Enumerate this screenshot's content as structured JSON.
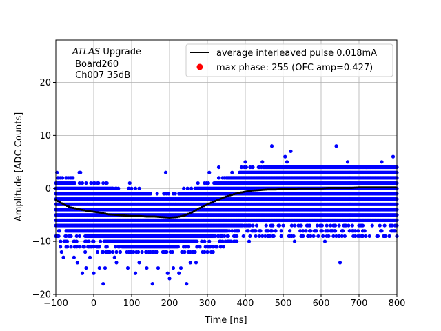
{
  "chart_data": {
    "type": "scatter",
    "xlabel": "Time [ns]",
    "ylabel": "Amplitude [ADC Counts]",
    "xlim": [
      -100,
      800
    ],
    "ylim": [
      -20,
      28
    ],
    "x_ticks": [
      -100,
      0,
      100,
      200,
      300,
      400,
      500,
      600,
      700,
      800
    ],
    "x_tick_labels": [
      "−100",
      "0",
      "100",
      "200",
      "300",
      "400",
      "500",
      "600",
      "700",
      "800"
    ],
    "y_ticks": [
      -20,
      -10,
      0,
      10,
      20
    ],
    "y_tick_labels": [
      "−20",
      "−10",
      "0",
      "10",
      "20"
    ],
    "grid": true,
    "annotation": {
      "italic": "ATLAS",
      "rest": " Upgrade",
      "line2": " Board260",
      "line3": " Ch007 35dB"
    },
    "legend": {
      "placement": "top-right",
      "entries": [
        {
          "label": "average interleaved pulse 0.018mA",
          "style": "line",
          "color": "#000000"
        },
        {
          "label": "max phase: 255 (OFC amp=0.427)",
          "style": "marker",
          "color": "#ff0000"
        }
      ]
    },
    "series": [
      {
        "name": "samples",
        "style": "scatter",
        "color": "#0000ff",
        "band": {
          "x_range": [
            -100,
            800
          ],
          "low_at": [
            [
              -100,
              -7
            ],
            [
              0,
              -9
            ],
            [
              100,
              -11
            ],
            [
              200,
              -11
            ],
            [
              300,
              -9
            ],
            [
              400,
              -6
            ],
            [
              500,
              -6
            ],
            [
              800,
              -6
            ]
          ],
          "high_at": [
            [
              -100,
              1
            ],
            [
              0,
              0
            ],
            [
              100,
              -1
            ],
            [
              200,
              -2
            ],
            [
              300,
              0
            ],
            [
              400,
              3
            ],
            [
              500,
              4
            ],
            [
              800,
              4
            ]
          ],
          "dense_step_ns": 2.5,
          "y_values": [
            -12,
            -11,
            -10,
            -9,
            -8,
            -7,
            -6,
            -5,
            -4,
            -3,
            -2,
            -1,
            0,
            1,
            2,
            3,
            4
          ]
        },
        "outliers": [
          [
            -97,
            3
          ],
          [
            -95,
            2
          ],
          [
            -92,
            1
          ],
          [
            -88,
            -11
          ],
          [
            -85,
            -12
          ],
          [
            -80,
            -13
          ],
          [
            -78,
            -10
          ],
          [
            -60,
            2
          ],
          [
            -52,
            -13
          ],
          [
            -43,
            -14
          ],
          [
            -38,
            3
          ],
          [
            -35,
            3
          ],
          [
            -30,
            -16
          ],
          [
            -20,
            -15
          ],
          [
            -10,
            -13
          ],
          [
            0,
            -16
          ],
          [
            15,
            -15
          ],
          [
            25,
            -18
          ],
          [
            30,
            -15
          ],
          [
            50,
            0
          ],
          [
            55,
            -13
          ],
          [
            60,
            -14
          ],
          [
            90,
            -15
          ],
          [
            95,
            1
          ],
          [
            110,
            -16
          ],
          [
            120,
            -14
          ],
          [
            140,
            -15
          ],
          [
            155,
            -18
          ],
          [
            170,
            -15
          ],
          [
            190,
            3
          ],
          [
            195,
            -16
          ],
          [
            200,
            -17
          ],
          [
            210,
            -15
          ],
          [
            225,
            -16
          ],
          [
            230,
            -15
          ],
          [
            245,
            -18
          ],
          [
            255,
            -14
          ],
          [
            270,
            -14
          ],
          [
            275,
            1
          ],
          [
            295,
            -11
          ],
          [
            305,
            3
          ],
          [
            320,
            -9
          ],
          [
            330,
            4
          ],
          [
            340,
            -9
          ],
          [
            355,
            -10
          ],
          [
            380,
            -8
          ],
          [
            400,
            5
          ],
          [
            410,
            -10
          ],
          [
            445,
            5
          ],
          [
            460,
            -9
          ],
          [
            470,
            8
          ],
          [
            480,
            -8
          ],
          [
            495,
            -9
          ],
          [
            505,
            6
          ],
          [
            510,
            5
          ],
          [
            520,
            7
          ],
          [
            530,
            -10
          ],
          [
            560,
            -8
          ],
          [
            580,
            -9
          ],
          [
            600,
            -7
          ],
          [
            610,
            -10
          ],
          [
            625,
            -8
          ],
          [
            640,
            8
          ],
          [
            650,
            -14
          ],
          [
            670,
            5
          ],
          [
            690,
            -9
          ],
          [
            710,
            -8
          ],
          [
            720,
            4
          ],
          [
            735,
            -7
          ],
          [
            760,
            5
          ],
          [
            780,
            -9
          ],
          [
            795,
            -8
          ],
          [
            790,
            6
          ]
        ]
      },
      {
        "name": "average interleaved pulse 0.018mA",
        "style": "line",
        "color": "#000000",
        "x": [
          -100,
          -80,
          -60,
          -40,
          -20,
          0,
          20,
          40,
          60,
          80,
          100,
          120,
          140,
          160,
          180,
          200,
          220,
          240,
          260,
          280,
          300,
          320,
          340,
          360,
          380,
          400,
          420,
          440,
          460,
          480,
          500,
          520,
          540,
          560,
          580,
          600,
          620,
          640,
          660,
          680,
          700,
          720,
          740,
          760,
          780,
          800
        ],
        "y": [
          -2.2,
          -3.0,
          -3.6,
          -3.9,
          -4.2,
          -4.4,
          -4.6,
          -4.9,
          -5.0,
          -5.1,
          -5.2,
          -5.2,
          -5.3,
          -5.3,
          -5.4,
          -5.5,
          -5.4,
          -5.1,
          -4.5,
          -3.7,
          -3.0,
          -2.4,
          -1.8,
          -1.3,
          -0.9,
          -0.6,
          -0.4,
          -0.3,
          -0.2,
          -0.2,
          -0.1,
          -0.1,
          0.0,
          0.0,
          0.0,
          0.0,
          0.1,
          0.1,
          0.1,
          0.1,
          0.2,
          0.2,
          0.2,
          0.2,
          0.2,
          0.2
        ]
      }
    ]
  }
}
